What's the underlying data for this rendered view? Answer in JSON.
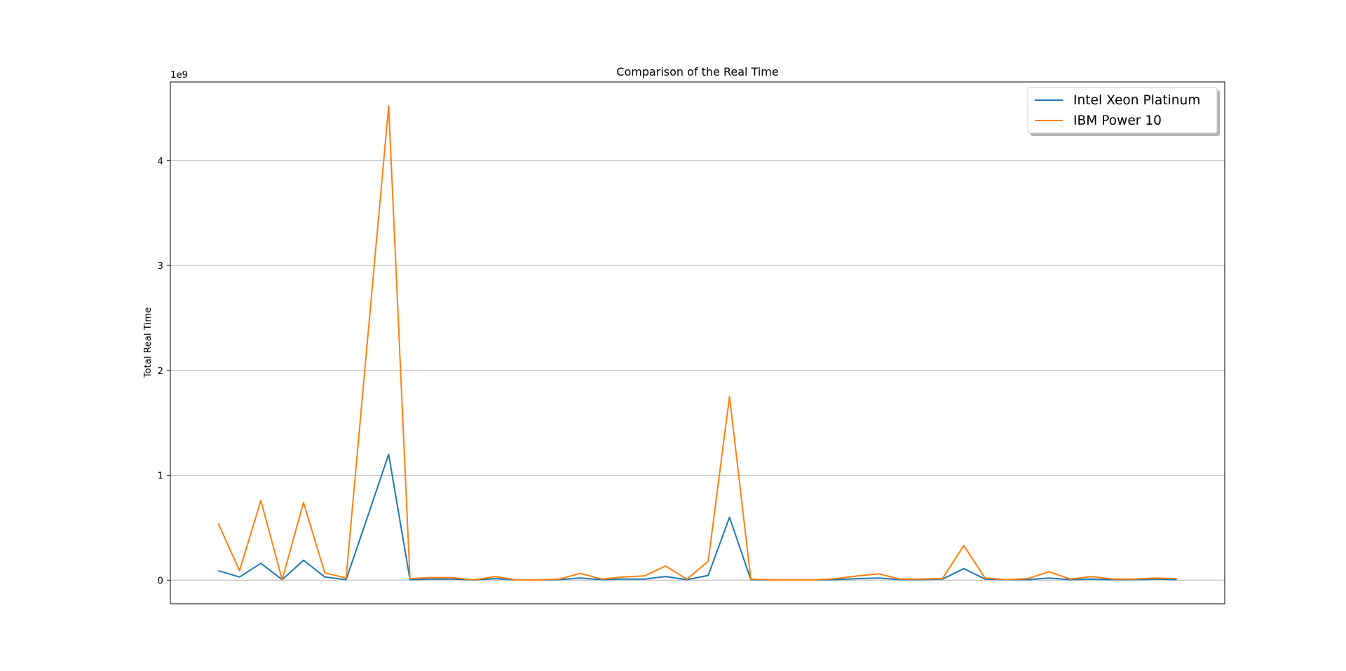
{
  "chart_data": {
    "type": "line",
    "title": "Comparison of the Real Time",
    "xlabel": "",
    "ylabel": "Total Real Time",
    "offset_label": "1e9",
    "ylim": [
      -225000000,
      4750000000
    ],
    "xlim": [
      -2.25,
      47.25
    ],
    "grid": "y",
    "legend_position": "top-right",
    "y_ticks": [
      0,
      1000000000,
      2000000000,
      3000000000,
      4000000000
    ],
    "y_tick_labels": [
      "0",
      "1",
      "2",
      "3",
      "4"
    ],
    "x": [
      0,
      1,
      2,
      3,
      4,
      5,
      6,
      7,
      8,
      9,
      10,
      11,
      12,
      13,
      14,
      15,
      16,
      17,
      18,
      19,
      20,
      21,
      22,
      23,
      24,
      25,
      26,
      27,
      28,
      29,
      30,
      31,
      32,
      33,
      34,
      35,
      36,
      37,
      38,
      39,
      40,
      41,
      42,
      43,
      44,
      45
    ],
    "series": [
      {
        "name": "Intel Xeon Platinum",
        "color": "#1f77b4",
        "values": [
          90000000,
          30000000,
          160000000,
          5000000,
          190000000,
          30000000,
          5000000,
          600000000,
          1200000000,
          5000000,
          10000000,
          10000000,
          2000000,
          15000000,
          2000000,
          2000000,
          5000000,
          20000000,
          5000000,
          10000000,
          10000000,
          35000000,
          5000000,
          45000000,
          600000000,
          5000000,
          2000000,
          2000000,
          2000000,
          5000000,
          15000000,
          20000000,
          5000000,
          5000000,
          10000000,
          110000000,
          10000000,
          5000000,
          5000000,
          20000000,
          5000000,
          10000000,
          5000000,
          5000000,
          10000000,
          5000000
        ]
      },
      {
        "name": "IBM Power 10",
        "color": "#ff7f0e",
        "values": [
          540000000,
          90000000,
          760000000,
          5000000,
          740000000,
          70000000,
          20000000,
          2280000000,
          4520000000,
          15000000,
          25000000,
          25000000,
          2000000,
          35000000,
          2000000,
          2000000,
          10000000,
          65000000,
          10000000,
          30000000,
          40000000,
          135000000,
          10000000,
          180000000,
          1750000000,
          10000000,
          2000000,
          2000000,
          2000000,
          15000000,
          40000000,
          60000000,
          10000000,
          10000000,
          15000000,
          330000000,
          20000000,
          5000000,
          15000000,
          80000000,
          10000000,
          35000000,
          10000000,
          10000000,
          20000000,
          15000000
        ]
      }
    ]
  }
}
